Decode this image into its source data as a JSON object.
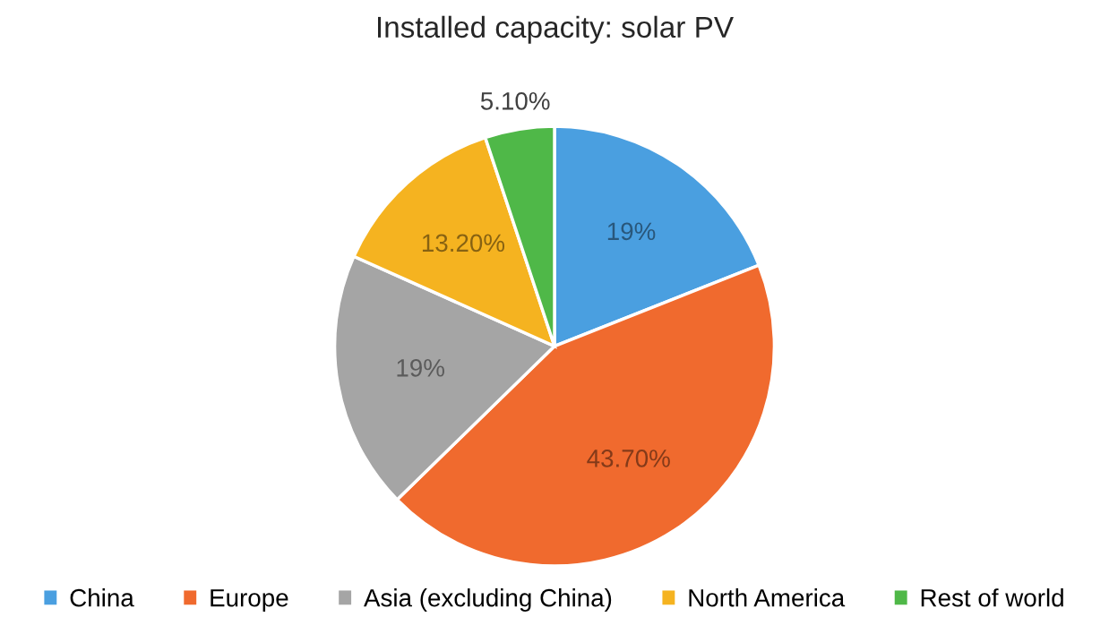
{
  "chart_data": {
    "type": "pie",
    "title": "Installed capacity: solar PV",
    "categories": [
      "China",
      "Europe",
      "Asia (excluding China)",
      "North America",
      "Rest of world"
    ],
    "values": [
      19,
      43.7,
      19,
      13.2,
      5.1
    ],
    "value_labels": [
      "19%",
      "43.70%",
      "19%",
      "13.20%",
      "5.10%"
    ],
    "colors": [
      "#4a9fe0",
      "#f06a2e",
      "#a5a5a5",
      "#f5b320",
      "#4fb848"
    ],
    "legend": "bottom"
  }
}
